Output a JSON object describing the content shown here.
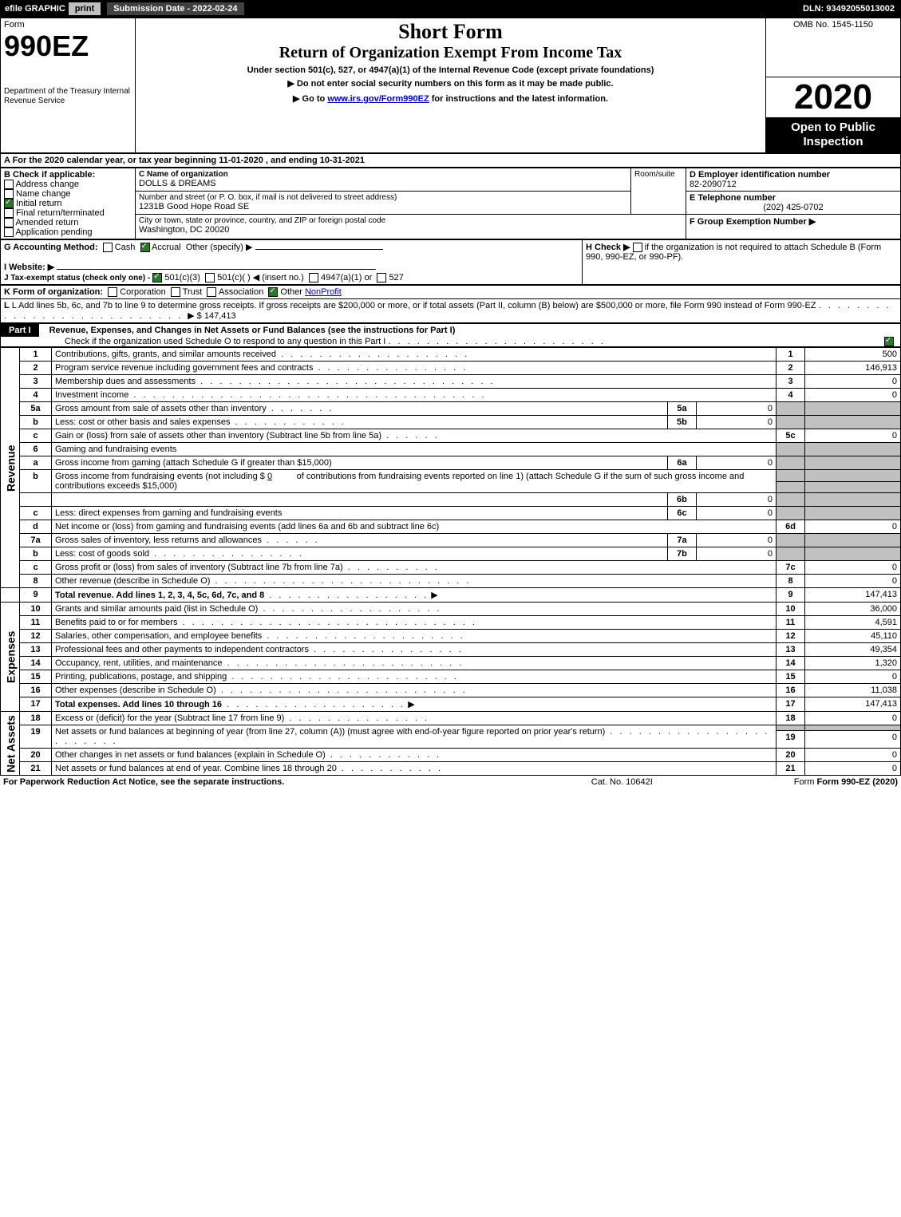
{
  "topbar": {
    "efile": "efile GRAPHIC",
    "print": "print",
    "submission_label": "Submission Date - 2022-02-24",
    "dln": "DLN: 93492055013002"
  },
  "header": {
    "form_label": "Form",
    "form_number": "990EZ",
    "dept": "Department of the Treasury\nInternal Revenue Service",
    "title": "Short Form",
    "subtitle": "Return of Organization Exempt From Income Tax",
    "subtitle2": "Under section 501(c), 527, or 4947(a)(1) of the Internal Revenue Code (except private foundations)",
    "warn": "▶ Do not enter social security numbers on this form as it may be made public.",
    "instructions": "▶ Go to ",
    "instructions_link": "www.irs.gov/Form990EZ",
    "instructions_suffix": " for instructions and the latest information.",
    "omb": "OMB No. 1545-1150",
    "year": "2020",
    "open_public": "Open to Public Inspection"
  },
  "line_a": {
    "text": "A For the 2020 calendar year, or tax year beginning 11-01-2020 , and ending 10-31-2021"
  },
  "boxB": {
    "label": "B Check if applicable:",
    "items": [
      {
        "checked": false,
        "label": "Address change"
      },
      {
        "checked": false,
        "label": "Name change"
      },
      {
        "checked": true,
        "label": "Initial return"
      },
      {
        "checked": false,
        "label": "Final return/terminated"
      },
      {
        "checked": false,
        "label": "Amended return"
      },
      {
        "checked": false,
        "label": "Application pending"
      }
    ]
  },
  "boxC": {
    "label": "C Name of organization",
    "name": "DOLLS & DREAMS",
    "addr_label": "Number and street (or P. O. box, if mail is not delivered to street address)",
    "room_label": "Room/suite",
    "address": "1231B Good Hope Road SE",
    "city_label": "City or town, state or province, country, and ZIP or foreign postal code",
    "city": "Washington, DC  20020"
  },
  "boxD": {
    "label": "D Employer identification number",
    "ein": "82-2090712"
  },
  "boxE": {
    "label": "E Telephone number",
    "phone": "(202) 425-0702"
  },
  "boxF": {
    "label": "F Group Exemption Number ▶",
    "val": ""
  },
  "lineG": {
    "label": "G Accounting Method:",
    "cash_checked": false,
    "cash": "Cash",
    "accrual_checked": true,
    "accrual": "Accrual",
    "other": "Other (specify) ▶"
  },
  "lineH": {
    "label": "H Check ▶",
    "text": "if the organization is not required to attach Schedule B (Form 990, 990-EZ, or 990-PF)."
  },
  "lineI": {
    "label": "I Website: ▶",
    "val": ""
  },
  "lineJ": {
    "label": "J Tax-exempt status (check only one) -",
    "opt1_checked": true,
    "opt1": "501(c)(3)",
    "opt2": "501(c)(   ) ◀ (insert no.)",
    "opt3": "4947(a)(1) or",
    "opt4": "527"
  },
  "lineK": {
    "label": "K Form of organization:",
    "corp": "Corporation",
    "trust": "Trust",
    "assoc": "Association",
    "other_checked": true,
    "other": "Other",
    "other_val": "NonProfit"
  },
  "lineL": {
    "text": "L Add lines 5b, 6c, and 7b to line 9 to determine gross receipts. If gross receipts are $200,000 or more, or if total assets (Part II, column (B) below) are $500,000 or more, file Form 990 instead of Form 990-EZ",
    "arrow": "▶ $",
    "amount": "147,413"
  },
  "part1": {
    "title": "Part I",
    "heading": "Revenue, Expenses, and Changes in Net Assets or Fund Balances (see the instructions for Part I)",
    "sub": "Check if the organization used Schedule O to respond to any question in this Part I",
    "sub_checked": true
  },
  "revenue_label": "Revenue",
  "expenses_label": "Expenses",
  "netassets_label": "Net Assets",
  "lines": {
    "l1": {
      "n": "1",
      "desc": "Contributions, gifts, grants, and similar amounts received",
      "num": "1",
      "amt": "500"
    },
    "l2": {
      "n": "2",
      "desc": "Program service revenue including government fees and contracts",
      "num": "2",
      "amt": "146,913"
    },
    "l3": {
      "n": "3",
      "desc": "Membership dues and assessments",
      "num": "3",
      "amt": "0"
    },
    "l4": {
      "n": "4",
      "desc": "Investment income",
      "num": "4",
      "amt": "0"
    },
    "l5a": {
      "n": "5a",
      "desc": "Gross amount from sale of assets other than inventory",
      "snum": "5a",
      "samt": "0"
    },
    "l5b": {
      "n": "b",
      "desc": "Less: cost or other basis and sales expenses",
      "snum": "5b",
      "samt": "0"
    },
    "l5c": {
      "n": "c",
      "desc": "Gain or (loss) from sale of assets other than inventory (Subtract line 5b from line 5a)",
      "num": "5c",
      "amt": "0"
    },
    "l6": {
      "n": "6",
      "desc": "Gaming and fundraising events"
    },
    "l6a": {
      "n": "a",
      "desc": "Gross income from gaming (attach Schedule G if greater than $15,000)",
      "snum": "6a",
      "samt": "0"
    },
    "l6b": {
      "n": "b",
      "desc1": "Gross income from fundraising events (not including $",
      "desc1_val": "0",
      "desc1_suffix": "of contributions from fundraising events reported on line 1) (attach Schedule G if the sum of such gross income and contributions exceeds $15,000)",
      "snum": "6b",
      "samt": "0"
    },
    "l6c": {
      "n": "c",
      "desc": "Less: direct expenses from gaming and fundraising events",
      "snum": "6c",
      "samt": "0"
    },
    "l6d": {
      "n": "d",
      "desc": "Net income or (loss) from gaming and fundraising events (add lines 6a and 6b and subtract line 6c)",
      "num": "6d",
      "amt": "0"
    },
    "l7a": {
      "n": "7a",
      "desc": "Gross sales of inventory, less returns and allowances",
      "snum": "7a",
      "samt": "0"
    },
    "l7b": {
      "n": "b",
      "desc": "Less: cost of goods sold",
      "snum": "7b",
      "samt": "0"
    },
    "l7c": {
      "n": "c",
      "desc": "Gross profit or (loss) from sales of inventory (Subtract line 7b from line 7a)",
      "num": "7c",
      "amt": "0"
    },
    "l8": {
      "n": "8",
      "desc": "Other revenue (describe in Schedule O)",
      "num": "8",
      "amt": "0"
    },
    "l9": {
      "n": "9",
      "desc": "Total revenue. Add lines 1, 2, 3, 4, 5c, 6d, 7c, and 8",
      "arrow": "▶",
      "num": "9",
      "amt": "147,413",
      "bold": true
    },
    "l10": {
      "n": "10",
      "desc": "Grants and similar amounts paid (list in Schedule O)",
      "num": "10",
      "amt": "36,000"
    },
    "l11": {
      "n": "11",
      "desc": "Benefits paid to or for members",
      "num": "11",
      "amt": "4,591"
    },
    "l12": {
      "n": "12",
      "desc": "Salaries, other compensation, and employee benefits",
      "num": "12",
      "amt": "45,110"
    },
    "l13": {
      "n": "13",
      "desc": "Professional fees and other payments to independent contractors",
      "num": "13",
      "amt": "49,354"
    },
    "l14": {
      "n": "14",
      "desc": "Occupancy, rent, utilities, and maintenance",
      "num": "14",
      "amt": "1,320"
    },
    "l15": {
      "n": "15",
      "desc": "Printing, publications, postage, and shipping",
      "num": "15",
      "amt": "0"
    },
    "l16": {
      "n": "16",
      "desc": "Other expenses (describe in Schedule O)",
      "num": "16",
      "amt": "11,038"
    },
    "l17": {
      "n": "17",
      "desc": "Total expenses. Add lines 10 through 16",
      "arrow": "▶",
      "num": "17",
      "amt": "147,413",
      "bold": true
    },
    "l18": {
      "n": "18",
      "desc": "Excess or (deficit) for the year (Subtract line 17 from line 9)",
      "num": "18",
      "amt": "0"
    },
    "l19": {
      "n": "19",
      "desc": "Net assets or fund balances at beginning of year (from line 27, column (A)) (must agree with end-of-year figure reported on prior year's return)",
      "num": "19",
      "amt": "0"
    },
    "l20": {
      "n": "20",
      "desc": "Other changes in net assets or fund balances (explain in Schedule O)",
      "num": "20",
      "amt": "0"
    },
    "l21": {
      "n": "21",
      "desc": "Net assets or fund balances at end of year. Combine lines 18 through 20",
      "num": "21",
      "amt": "0"
    }
  },
  "footer": {
    "left": "For Paperwork Reduction Act Notice, see the separate instructions.",
    "mid": "Cat. No. 10642I",
    "right": "Form 990-EZ (2020)"
  }
}
